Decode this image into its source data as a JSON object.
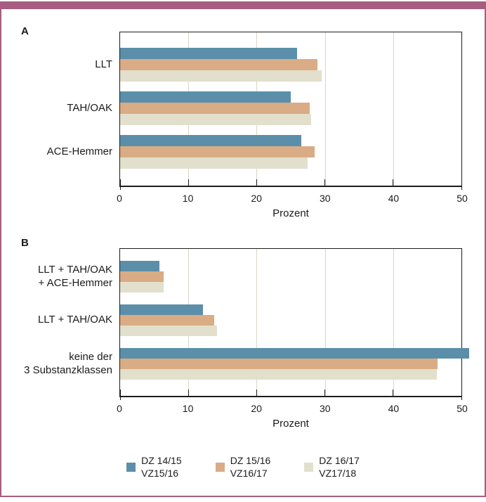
{
  "accent_color": "#a75d80",
  "text_color": "#1b1b1b",
  "gridline_color": "#d9d6c6",
  "series_colors": {
    "blue": "#5b8fa9",
    "tan": "#d9ac85",
    "cream": "#e2dfcc"
  },
  "legend": {
    "items": [
      {
        "line1": "DZ 14/15",
        "line2": "VZ15/16",
        "color": "#5b8fa9"
      },
      {
        "line1": "DZ 15/16",
        "line2": "VZ16/17",
        "color": "#d9ac85"
      },
      {
        "line1": "DZ 16/17",
        "line2": "VZ17/18",
        "color": "#e2dfcc"
      }
    ]
  },
  "chart_data": [
    {
      "type": "bar",
      "orientation": "horizontal",
      "panel": "A",
      "xlabel": "Prozent",
      "xlim": [
        0,
        50
      ],
      "xticks": [
        0,
        10,
        20,
        30,
        40,
        50
      ],
      "grid": "vertical-light",
      "categories": [
        [
          "LLT"
        ],
        [
          "TAH/OAK"
        ],
        [
          "ACE-Hemmer"
        ]
      ],
      "series": [
        {
          "name": "DZ 14/15 VZ15/16",
          "color": "#5b8fa9",
          "values": [
            25.9,
            25.0,
            26.5
          ]
        },
        {
          "name": "DZ 15/16 VZ16/17",
          "color": "#d9ac85",
          "values": [
            28.9,
            27.8,
            28.5
          ]
        },
        {
          "name": "DZ 16/17 VZ17/18",
          "color": "#e2dfcc",
          "values": [
            29.5,
            28.0,
            27.5
          ]
        }
      ]
    },
    {
      "type": "bar",
      "orientation": "horizontal",
      "panel": "B",
      "xlabel": "Prozent",
      "xlim": [
        0,
        50
      ],
      "xticks": [
        0,
        10,
        20,
        30,
        40,
        50
      ],
      "grid": "vertical-light",
      "categories": [
        [
          "LLT + TAH/OAK",
          "+ ACE-Hemmer"
        ],
        [
          "LLT + TAH/OAK"
        ],
        [
          "keine der",
          "3 Substanzklassen"
        ]
      ],
      "series": [
        {
          "name": "DZ 14/15 VZ15/16",
          "color": "#5b8fa9",
          "values": [
            5.8,
            12.1,
            51.1
          ]
        },
        {
          "name": "DZ 15/16 VZ16/17",
          "color": "#d9ac85",
          "values": [
            6.4,
            13.8,
            46.5
          ]
        },
        {
          "name": "DZ 16/17 VZ17/18",
          "color": "#e2dfcc",
          "values": [
            6.4,
            14.2,
            46.4
          ]
        }
      ]
    }
  ]
}
